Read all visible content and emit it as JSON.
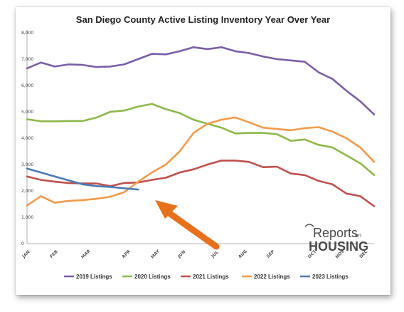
{
  "chart_data": {
    "type": "line",
    "title": "San Diego County Active Listing Inventory Year Over Year",
    "xlabel": "",
    "ylabel": "",
    "ylim": [
      0,
      8000
    ],
    "yticks": [
      "0",
      "1,000",
      "2,000",
      "3,000",
      "4,000",
      "5,000",
      "6,000",
      "7,000",
      "8,000"
    ],
    "grid": false,
    "legend": "bottom",
    "month_labels": [
      "JAN",
      "FEB",
      "MAR",
      "APR",
      "MAY",
      "JUN",
      "JUL",
      "AUG",
      "SEP",
      "OCT",
      "NOV",
      "DEC"
    ],
    "x": [
      0,
      1,
      2,
      3,
      4,
      5,
      6,
      7,
      8,
      9,
      10,
      11,
      12,
      13,
      14,
      15,
      16,
      17,
      18,
      19,
      20,
      21,
      22,
      23,
      24,
      25
    ],
    "series": [
      {
        "name": "2019 Listings",
        "color": "#7b5ea8",
        "values": [
          6650,
          6870,
          6720,
          6800,
          6780,
          6700,
          6720,
          6800,
          7000,
          7200,
          7180,
          7300,
          7450,
          7380,
          7450,
          7300,
          7230,
          7100,
          7000,
          6950,
          6900,
          6500,
          6250,
          5800,
          5400,
          4900
        ]
      },
      {
        "name": "2020 Listings",
        "color": "#8db84a",
        "values": [
          4720,
          4640,
          4640,
          4650,
          4650,
          4780,
          5000,
          5050,
          5200,
          5300,
          5100,
          4950,
          4700,
          4550,
          4400,
          4180,
          4200,
          4200,
          4150,
          3900,
          3950,
          3750,
          3650,
          3350,
          3050,
          2600
        ]
      },
      {
        "name": "2021 Listings",
        "color": "#c0504d",
        "values": [
          2550,
          2420,
          2350,
          2300,
          2280,
          2280,
          2180,
          2300,
          2320,
          2420,
          2500,
          2700,
          2820,
          3000,
          3150,
          3150,
          3100,
          2900,
          2920,
          2660,
          2600,
          2380,
          2250,
          1900,
          1800,
          1420
        ]
      },
      {
        "name": "2022 Listings",
        "color": "#f49a4a",
        "values": [
          1450,
          1800,
          1550,
          1620,
          1650,
          1700,
          1780,
          1950,
          2350,
          2700,
          3000,
          3500,
          4200,
          4550,
          4700,
          4790,
          4600,
          4400,
          4350,
          4300,
          4380,
          4420,
          4250,
          4000,
          3650,
          3100
        ]
      },
      {
        "name": "2023 Listings",
        "color": "#4a7ab5",
        "values": [
          2850,
          2700,
          2550,
          2400,
          2250,
          2180,
          2150,
          2100,
          2050,
          null,
          null,
          null,
          null,
          null,
          null,
          null,
          null,
          null,
          null,
          null,
          null,
          null,
          null,
          null,
          null,
          null
        ]
      }
    ],
    "annotations": [
      "orange arrow pointing to end of 2023 line"
    ]
  },
  "logo": {
    "line1": "Reports",
    "line1_suffix": "on",
    "line2": "HOUSING"
  }
}
